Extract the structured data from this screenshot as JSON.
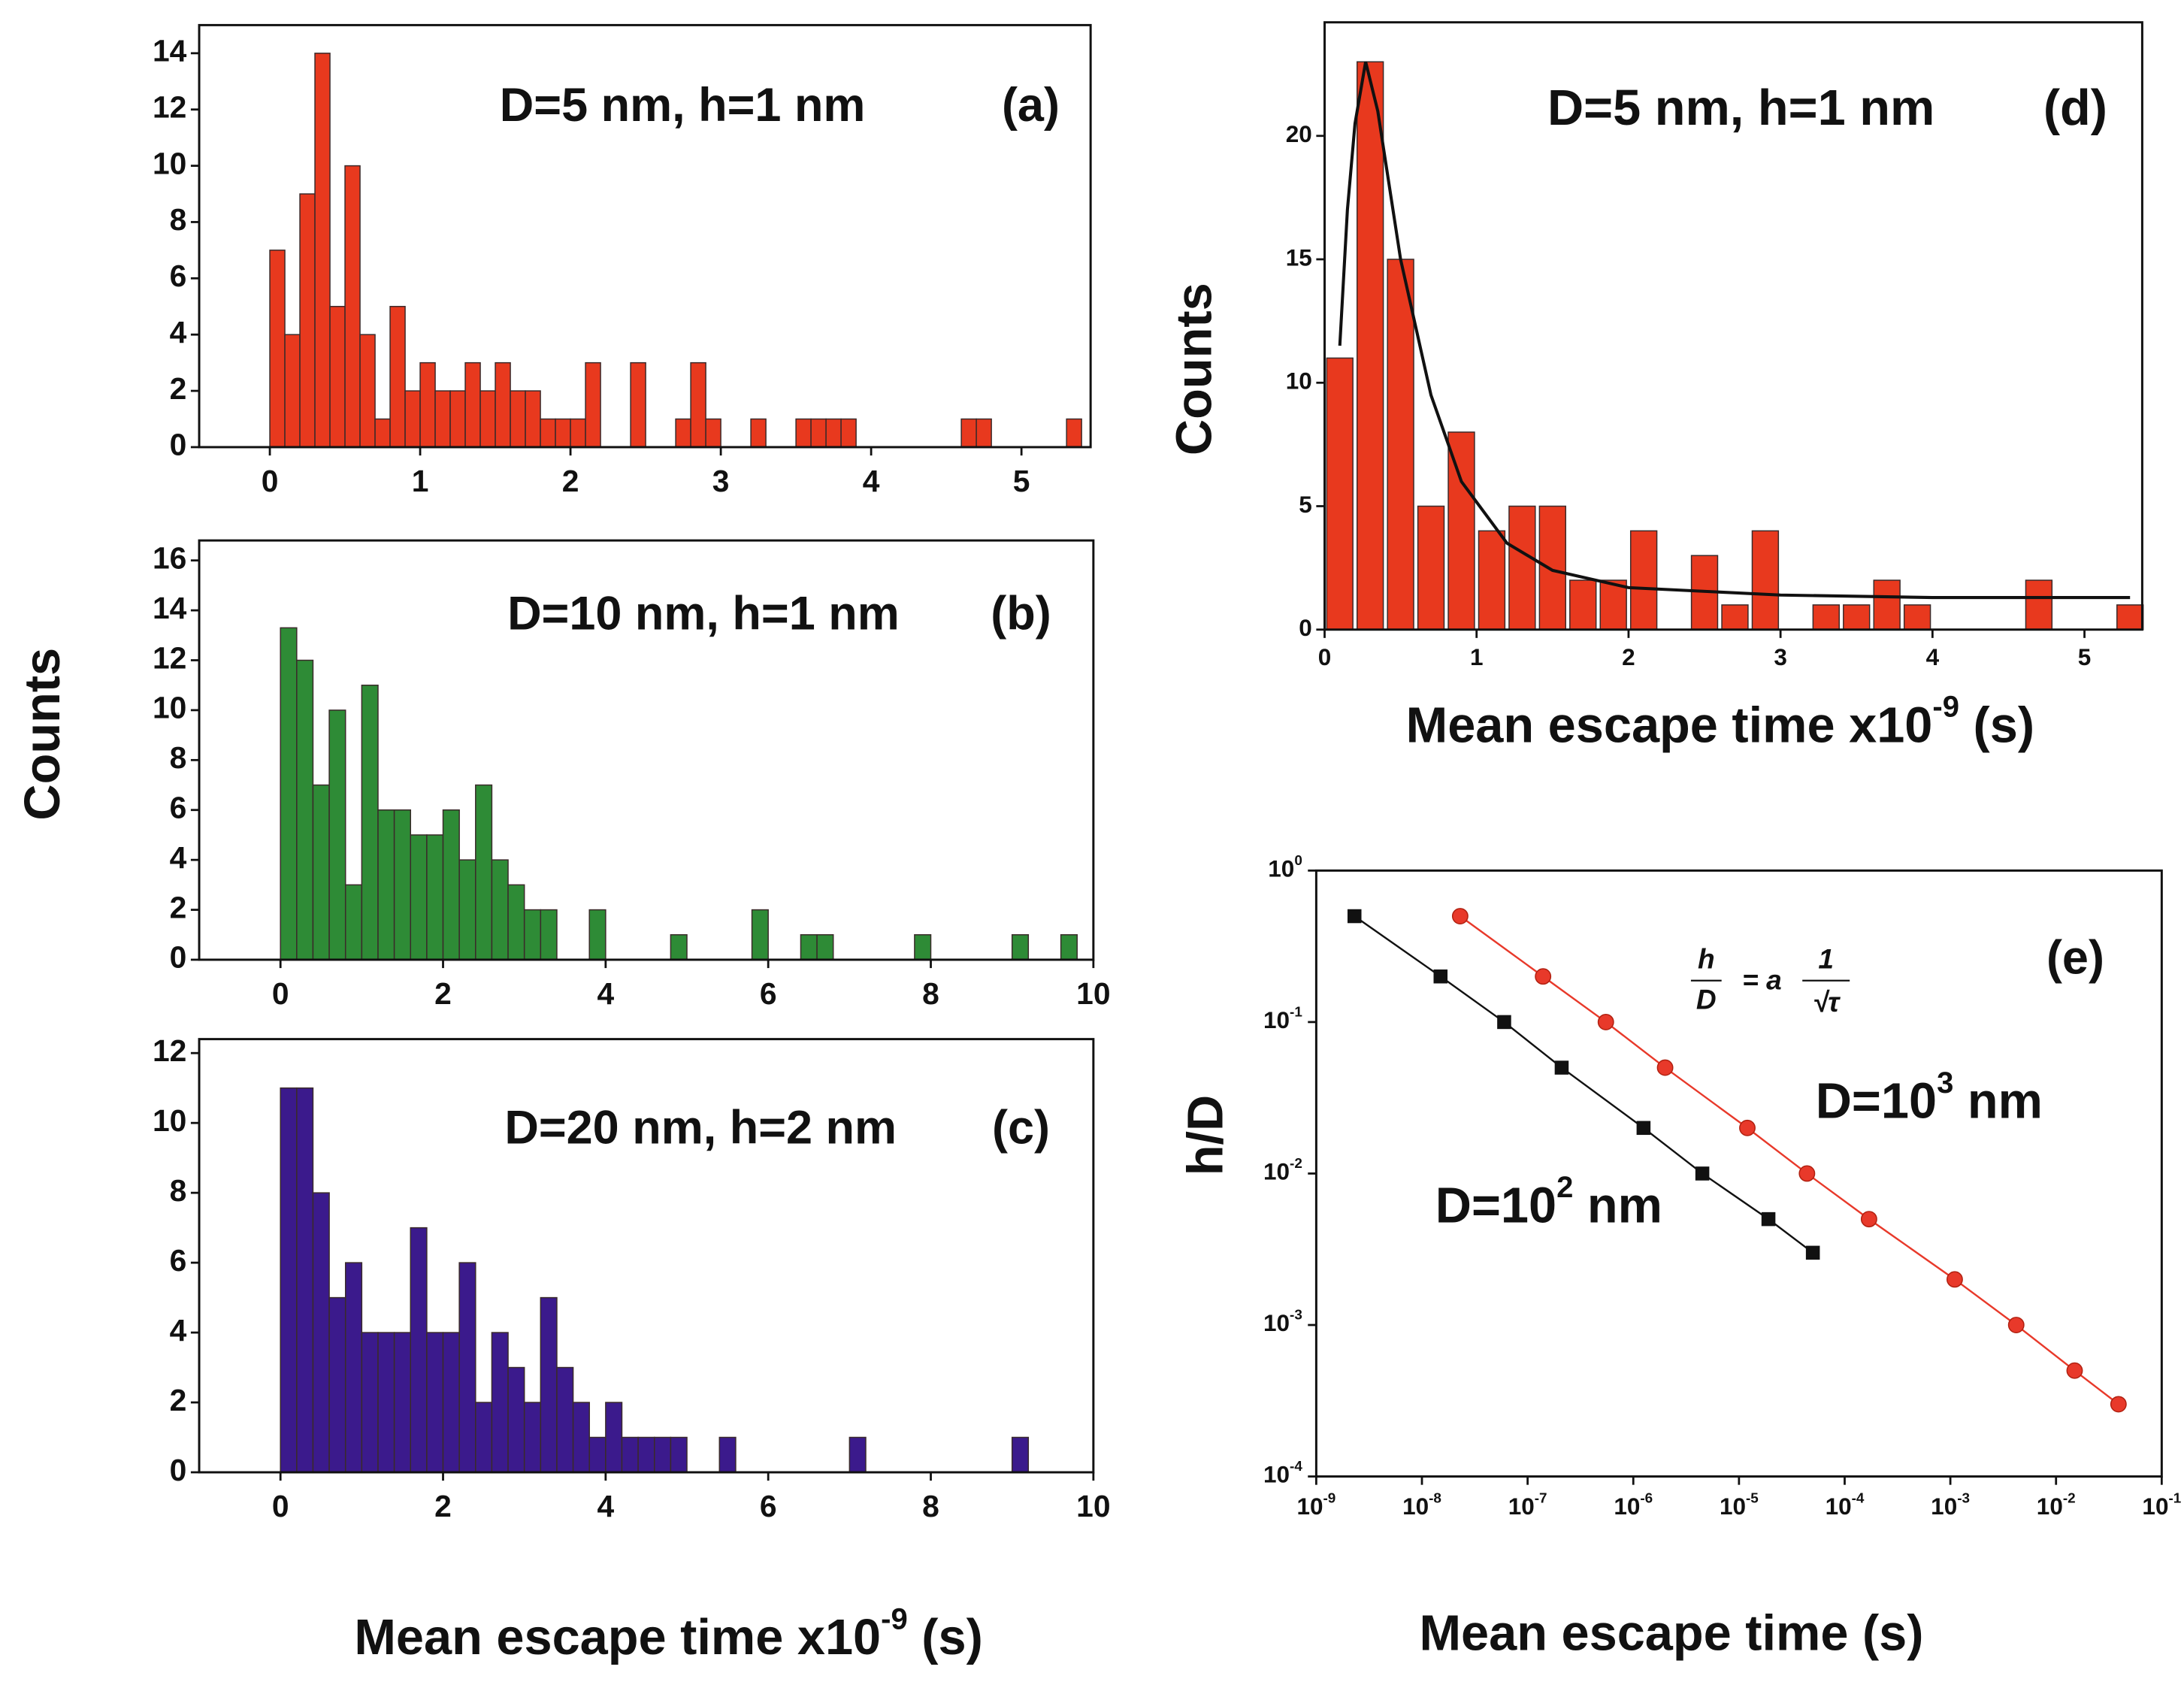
{
  "chart_data": [
    {
      "type": "histogram",
      "annotation": "D=5 nm, h=1 nm",
      "panel": "(a)",
      "color": "#e8391e",
      "bins": [
        0,
        0.1,
        0.2,
        0.3,
        0.4,
        0.5,
        0.6,
        0.7,
        0.8,
        0.9,
        1,
        1.1,
        1.2,
        1.3,
        1.4,
        1.5,
        1.6,
        1.7,
        1.8,
        1.9,
        2,
        2.1,
        2.2,
        2.3,
        2.4,
        2.5,
        2.6,
        2.7,
        2.8,
        2.9,
        3,
        3.1,
        3.2,
        3.3,
        3.4,
        3.5,
        3.6,
        3.7,
        3.8,
        3.9,
        4,
        4.1,
        4.2,
        4.3,
        4.4,
        4.5,
        4.6,
        4.7,
        4.8,
        4.9,
        5,
        5.1,
        5.2,
        5.3,
        5.4
      ],
      "values": [
        7,
        4,
        9,
        14,
        5,
        10,
        4,
        1,
        5,
        2,
        3,
        2,
        2,
        3,
        2,
        3,
        2,
        2,
        1,
        1,
        1,
        3,
        0,
        0,
        3,
        0,
        0,
        1,
        3,
        1,
        0,
        0,
        1,
        0,
        0,
        1,
        1,
        1,
        1,
        0,
        0,
        0,
        0,
        0,
        0,
        0,
        1,
        1,
        0,
        0,
        0,
        0,
        0,
        1
      ],
      "xlim": [
        -0.47,
        5.46
      ],
      "ylim": [
        0,
        15
      ],
      "xticks": [
        0,
        1,
        2,
        3,
        4,
        5
      ],
      "yticks": [
        0,
        2,
        4,
        6,
        8,
        10,
        12,
        14
      ]
    },
    {
      "type": "histogram",
      "annotation": "D=10 nm, h=1 nm",
      "panel": "(b)",
      "color": "#2e8b36",
      "ylabel": "Counts",
      "bins": [
        0,
        0.2,
        0.4,
        0.6,
        0.8,
        1,
        1.2,
        1.4,
        1.6,
        1.8,
        2,
        2.2,
        2.4,
        2.6,
        2.8,
        3,
        3.2,
        3.4,
        3.6,
        3.8,
        4,
        4.2,
        4.4,
        4.6,
        4.8,
        5,
        5.2,
        5.4,
        5.6,
        5.8,
        6,
        6.2,
        6.4,
        6.6,
        6.8,
        7,
        7.2,
        7.4,
        7.6,
        7.8,
        8,
        8.2,
        8.4,
        8.6,
        8.8,
        9,
        9.2,
        9.4,
        9.6,
        9.8
      ],
      "values": [
        13.3,
        12,
        7,
        10,
        3,
        11,
        6,
        6,
        5,
        5,
        6,
        4,
        7,
        4,
        3,
        2,
        2,
        0,
        0,
        2,
        0,
        0,
        0,
        0,
        1,
        0,
        0,
        0,
        0,
        2,
        0,
        0,
        1,
        1,
        0,
        0,
        0,
        0,
        0,
        1,
        0,
        0,
        0,
        0,
        0,
        1,
        0,
        0,
        1
      ],
      "xlim": [
        -1,
        10
      ],
      "ylim": [
        0,
        16.8
      ],
      "xticks": [
        0,
        2,
        4,
        6,
        8,
        10
      ],
      "yticks": [
        0,
        2,
        4,
        6,
        8,
        10,
        12,
        14,
        16
      ]
    },
    {
      "type": "histogram",
      "annotation": "D=20 nm, h=2 nm",
      "panel": "(c)",
      "color": "#3b1a8c",
      "xlabel": {
        "text": "Mean escape time x10",
        "sup": "-9",
        "tail": " (s)"
      },
      "bins": [
        0,
        0.2,
        0.4,
        0.6,
        0.8,
        1,
        1.2,
        1.4,
        1.6,
        1.8,
        2,
        2.2,
        2.4,
        2.6,
        2.8,
        3,
        3.2,
        3.4,
        3.6,
        3.8,
        4,
        4.2,
        4.4,
        4.6,
        4.8,
        5,
        5.2,
        5.4,
        5.6,
        5.8,
        6,
        6.2,
        6.4,
        6.6,
        6.8,
        7,
        7.2,
        7.4,
        7.6,
        7.8,
        8,
        8.2,
        8.4,
        8.6,
        8.8,
        9,
        9.2
      ],
      "values": [
        11,
        11,
        8,
        5,
        6,
        4,
        4,
        4,
        7,
        4,
        4,
        6,
        2,
        4,
        3,
        2,
        5,
        3,
        2,
        1,
        2,
        1,
        1,
        1,
        1,
        0,
        0,
        1,
        0,
        0,
        0,
        0,
        0,
        0,
        0,
        1,
        0,
        0,
        0,
        0,
        0,
        0,
        0,
        0,
        0,
        1
      ],
      "xlim": [
        -1,
        10
      ],
      "ylim": [
        0,
        12.4
      ],
      "xticks": [
        0,
        2,
        4,
        6,
        8,
        10
      ],
      "yticks": [
        0,
        2,
        4,
        6,
        8,
        10,
        12
      ]
    },
    {
      "type": "histogram",
      "annotation": "D=5 nm, h=1 nm",
      "panel": "(d)",
      "color": "#e8391e",
      "ylabel": "Counts",
      "xlabel": {
        "text": "Mean escape time x10",
        "sup": "-9",
        "tail": " (s)"
      },
      "bins": [
        0,
        0.2,
        0.4,
        0.6,
        0.8,
        1,
        1.2,
        1.4,
        1.6,
        1.8,
        2,
        2.2,
        2.4,
        2.6,
        2.8,
        3,
        3.2,
        3.4,
        3.6,
        3.8,
        4,
        4.2,
        4.4,
        4.6,
        4.8,
        5,
        5.2,
        5.4
      ],
      "values": [
        11,
        23,
        15,
        5,
        8,
        4,
        5,
        5,
        2,
        2,
        4,
        0,
        3,
        1,
        4,
        0,
        1,
        1,
        2,
        1,
        0,
        0,
        0,
        2,
        0,
        0,
        1
      ],
      "fit": {
        "color": "#111111",
        "x": [
          0.1,
          0.15,
          0.2,
          0.27,
          0.35,
          0.5,
          0.7,
          0.9,
          1.2,
          1.5,
          2,
          3,
          4,
          5.3
        ],
        "values": [
          11.5,
          17,
          20.5,
          23,
          21,
          15,
          9.5,
          6,
          3.5,
          2.4,
          1.7,
          1.4,
          1.3,
          1.3
        ]
      },
      "xlim": [
        0,
        5.38
      ],
      "ylim": [
        0,
        24.6
      ],
      "xticks": [
        0,
        1,
        2,
        3,
        4,
        5
      ],
      "yticks": [
        0,
        5,
        10,
        15,
        20
      ]
    },
    {
      "type": "scatter",
      "xscale": "log",
      "yscale": "log",
      "panel": "(e)",
      "ylabel": "h/D",
      "xlabel": {
        "text": "Mean escape time  (s)"
      },
      "formula": {
        "lhs_num": "h",
        "lhs_den": "D",
        "eq": "= a",
        "rhs_num": "1",
        "rhs_den": "√τ"
      },
      "annotations": [
        {
          "text": "D=10",
          "sup": "3",
          "tail": " nm"
        },
        {
          "text": "D=10",
          "sup": "2",
          "tail": " nm"
        }
      ],
      "series": [
        {
          "color": "#111111",
          "marker": "square",
          "x": [
            2.3e-09,
            1.5e-08,
            6e-08,
            2.1e-07,
            1.25e-06,
            4.5e-06,
            1.9e-05,
            5e-05
          ],
          "values": [
            0.5,
            0.2,
            0.1,
            0.05,
            0.02,
            0.01,
            0.005,
            0.003
          ]
        },
        {
          "color": "#e8392a",
          "marker": "circle",
          "x": [
            2.3e-08,
            1.4e-07,
            5.5e-07,
            2e-06,
            1.2e-05,
            4.4e-05,
            0.00017,
            0.0011,
            0.0042,
            0.015,
            0.039
          ],
          "values": [
            0.5,
            0.2,
            0.1,
            0.05,
            0.02,
            0.01,
            0.005,
            0.002,
            0.001,
            0.0005,
            0.0003
          ]
        }
      ],
      "xlim": [
        1e-09,
        0.1
      ],
      "ylim": [
        0.0001,
        1
      ],
      "xticks": [
        {
          "value": 1e-09,
          "label": "10",
          "sup": "-9"
        },
        {
          "value": 1e-08,
          "label": "10",
          "sup": "-8"
        },
        {
          "value": 1e-07,
          "label": "10",
          "sup": "-7"
        },
        {
          "value": 1e-06,
          "label": "10",
          "sup": "-6"
        },
        {
          "value": 1e-05,
          "label": "10",
          "sup": "-5"
        },
        {
          "value": 0.0001,
          "label": "10",
          "sup": "-4"
        },
        {
          "value": 0.001,
          "label": "10",
          "sup": "-3"
        },
        {
          "value": 0.01,
          "label": "10",
          "sup": "-2"
        },
        {
          "value": 0.1,
          "label": "10",
          "sup": "-1"
        }
      ],
      "yticks": [
        {
          "value": 1,
          "label": "10",
          "sup": "0"
        },
        {
          "value": 0.1,
          "label": "10",
          "sup": "-1"
        },
        {
          "value": 0.01,
          "label": "10",
          "sup": "-2"
        },
        {
          "value": 0.001,
          "label": "10",
          "sup": "-3"
        },
        {
          "value": 0.0001,
          "label": "10",
          "sup": "-4"
        }
      ]
    }
  ]
}
